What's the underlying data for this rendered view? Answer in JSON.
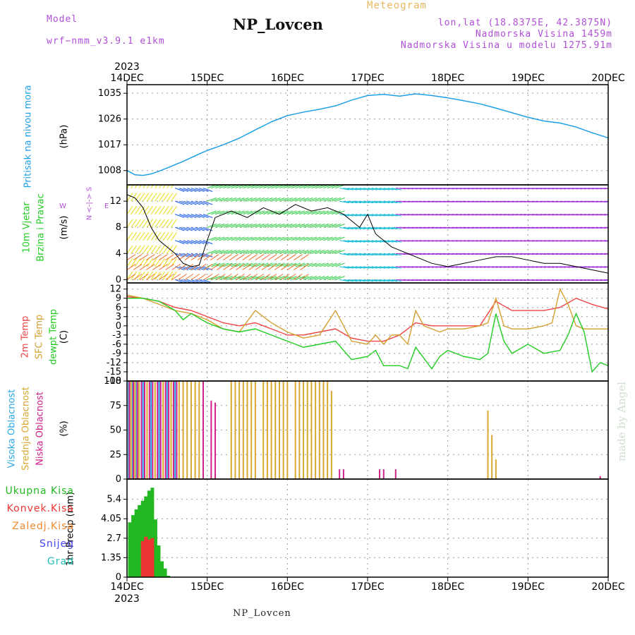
{
  "header": {
    "model_label": "Model",
    "model_value": "wrf−nmm_v3.9.1  e1km",
    "station": "NP_Lovcen",
    "chart_kind": "Meteogram",
    "coords": "lon,lat (18.8375E, 42.3875N)",
    "elevation": "Nadmorska Visina 1459m",
    "model_elevation": "Nadmorska Visina u modelu 1275.91m",
    "watermark": "made by Angel",
    "footer": "NP_Lovcen"
  },
  "time_axis": {
    "year": "2023",
    "ticks": [
      "14DEC",
      "15DEC",
      "16DEC",
      "17DEC",
      "18DEC",
      "19DEC",
      "20DEC"
    ]
  },
  "panel_labels": {
    "pressure": {
      "title": "Pritisak na nivou mora",
      "unit": "(hPa)"
    },
    "wind": {
      "title1": "10m Vjetar",
      "title2": "Brzina i Pravac",
      "unit": "(m/s)",
      "compass_ns": "N <-|-> S",
      "compass_w": "W",
      "compass_e": "E"
    },
    "temp": {
      "t2m": "2m Temp",
      "sfc": "SFC Temp",
      "dew": "dewpt Temp",
      "unit": "(C)"
    },
    "cloud": {
      "high": "Visoka Oblacnost",
      "mid": "Srednja Oblacnost",
      "low": "Niska Oblacnost",
      "unit": "(%)"
    },
    "precip": {
      "unit": "1hr Precip (mm)"
    }
  },
  "precip_legend": [
    "Ukupna Kisa",
    "Konvek.Kisa",
    "Zaledj.Kisa",
    "Snijeg",
    "Grad"
  ],
  "colors": {
    "pressure": "#1ea0e6",
    "t2m": "#ee4444",
    "sfc": "#d4a030",
    "dew": "#22cc22",
    "high": "#2aa8e8",
    "mid": "#d8a830",
    "low": "#d0208a",
    "total": "#22b822",
    "conv": "#ee3333",
    "frozen": "#f08a30",
    "snow": "#4444ee",
    "hail": "#22c0b0",
    "purple": "#b04fd8"
  },
  "chart_data": [
    {
      "type": "line",
      "title": "Pritisak na nivou mora",
      "ylabel": "(hPa)",
      "ylim": [
        1003,
        1038
      ],
      "yticks": [
        1008,
        1017,
        1026,
        1035
      ],
      "x_unit": "days since 14DEC 00Z",
      "xlim": [
        0,
        6
      ],
      "series": [
        {
          "name": "Pritisak na nivou mora",
          "x": [
            0,
            0.1,
            0.2,
            0.3,
            0.4,
            0.5,
            0.7,
            0.9,
            1.0,
            1.2,
            1.4,
            1.6,
            1.8,
            2.0,
            2.2,
            2.4,
            2.6,
            2.8,
            3.0,
            3.2,
            3.4,
            3.6,
            3.8,
            4.0,
            4.2,
            4.4,
            4.6,
            4.8,
            5.0,
            5.2,
            5.4,
            5.6,
            5.8,
            6.0
          ],
          "y": [
            1008,
            1006.5,
            1006.3,
            1006.8,
            1007.8,
            1008.9,
            1011.2,
            1013.8,
            1015.0,
            1017.0,
            1019.3,
            1022.2,
            1025.0,
            1027.2,
            1028.4,
            1029.4,
            1030.6,
            1032.6,
            1034.2,
            1034.6,
            1034.0,
            1034.8,
            1034.2,
            1033.4,
            1032.4,
            1031.3,
            1029.8,
            1028.2,
            1026.6,
            1025.3,
            1024.6,
            1023.2,
            1021.2,
            1019.4
          ]
        }
      ]
    },
    {
      "type": "line",
      "title": "10m Vjetar Brzina i Pravac",
      "ylabel": "(m/s)",
      "ylim": [
        -0.5,
        14.5
      ],
      "yticks": [
        0,
        4,
        8,
        12
      ],
      "series": [
        {
          "name": "Brzina",
          "x": [
            0,
            0.1,
            0.2,
            0.3,
            0.4,
            0.5,
            0.6,
            0.7,
            0.8,
            0.9,
            1.0,
            1.1,
            1.3,
            1.5,
            1.7,
            1.9,
            2.1,
            2.3,
            2.5,
            2.7,
            2.8,
            2.9,
            3.0,
            3.1,
            3.2,
            3.3,
            3.4,
            3.6,
            3.8,
            4.0,
            4.2,
            4.4,
            4.6,
            4.8,
            5.0,
            5.2,
            5.4,
            5.6,
            5.8,
            6.0
          ],
          "y": [
            13,
            12.5,
            11,
            8,
            6,
            5,
            4,
            2.5,
            2,
            2.2,
            6,
            9.5,
            10.5,
            9.5,
            11,
            10,
            11.5,
            10.5,
            11,
            10,
            9,
            8,
            10,
            7,
            6,
            5,
            4.5,
            3.5,
            2.5,
            2,
            2.5,
            3,
            3.5,
            3.5,
            3,
            2.5,
            2.5,
            2,
            1.5,
            1
          ]
        }
      ]
    },
    {
      "type": "line",
      "ylabel": "(C)",
      "ylim": [
        -18,
        14
      ],
      "yticks": [
        12,
        9,
        6,
        3,
        0,
        -3,
        -6,
        -9,
        -12,
        -15,
        -18
      ],
      "series": [
        {
          "name": "2m Temp",
          "x": [
            0,
            0.2,
            0.4,
            0.6,
            0.8,
            1.0,
            1.2,
            1.4,
            1.6,
            1.8,
            2.0,
            2.2,
            2.4,
            2.6,
            2.8,
            3.0,
            3.2,
            3.4,
            3.6,
            3.8,
            4.0,
            4.2,
            4.4,
            4.6,
            4.8,
            5.0,
            5.2,
            5.4,
            5.6,
            5.8,
            6.0
          ],
          "y": [
            9.5,
            9,
            8,
            6,
            5,
            3,
            1,
            0,
            1,
            -1,
            -3,
            -3,
            -2,
            -1,
            -4,
            -5,
            -5,
            -3,
            1,
            0,
            0,
            0,
            0,
            8,
            5,
            5,
            5,
            6,
            9,
            7,
            5.5
          ]
        },
        {
          "name": "SFC Temp",
          "x": [
            0,
            0.2,
            0.4,
            0.6,
            0.8,
            1.0,
            1.2,
            1.4,
            1.6,
            1.8,
            2.0,
            2.2,
            2.4,
            2.6,
            2.8,
            3.0,
            3.1,
            3.2,
            3.3,
            3.4,
            3.5,
            3.6,
            3.7,
            3.8,
            3.9,
            4.0,
            4.2,
            4.4,
            4.5,
            4.6,
            4.7,
            4.8,
            4.9,
            5.0,
            5.2,
            5.3,
            5.4,
            5.5,
            5.6,
            5.7,
            5.8,
            6.0
          ],
          "y": [
            10,
            9,
            7,
            5,
            4,
            2,
            -1,
            -2,
            5,
            1,
            -2,
            -4,
            -3,
            5,
            -5,
            -6,
            -3,
            -6,
            -3,
            -3,
            -6,
            5,
            0,
            -1,
            -2,
            -1,
            -1,
            0,
            1,
            9,
            0,
            -1,
            -1,
            -1,
            0,
            1,
            12,
            7,
            0,
            -1,
            -1,
            -1
          ]
        },
        {
          "name": "dewpt Temp",
          "x": [
            0,
            0.2,
            0.4,
            0.6,
            0.7,
            0.8,
            1.0,
            1.2,
            1.4,
            1.6,
            1.8,
            2.0,
            2.2,
            2.4,
            2.6,
            2.8,
            3.0,
            3.1,
            3.2,
            3.4,
            3.5,
            3.6,
            3.8,
            3.9,
            4.0,
            4.2,
            4.4,
            4.5,
            4.6,
            4.7,
            4.8,
            5.0,
            5.2,
            5.4,
            5.5,
            5.6,
            5.7,
            5.8,
            5.9,
            6.0
          ],
          "y": [
            9,
            9,
            8,
            5,
            2,
            4,
            1,
            -1,
            -2,
            -1,
            -3,
            -5,
            -7,
            -6,
            -5,
            -11,
            -10,
            -8,
            -13,
            -13,
            -14,
            -7,
            -14,
            -10,
            -8,
            -10,
            -11,
            -9,
            4,
            -5,
            -9,
            -6,
            -9,
            -8,
            -3,
            4,
            -2,
            -15,
            -12,
            -13
          ]
        }
      ]
    },
    {
      "type": "bar",
      "ylabel": "(%)",
      "ylim": [
        0,
        100
      ],
      "yticks": [
        0,
        25,
        50,
        75,
        100
      ],
      "series": [
        {
          "name": "Visoka Oblacnost",
          "x": [
            0.02,
            0.07,
            0.12,
            0.2,
            0.3,
            0.4,
            0.5,
            0.6
          ],
          "y": [
            100,
            100,
            100,
            100,
            100,
            100,
            100,
            100
          ]
        },
        {
          "name": "Srednja Oblacnost",
          "x": [
            0.05,
            0.1,
            0.15,
            0.25,
            0.35,
            0.45,
            0.55,
            0.65,
            0.7,
            0.75,
            0.8,
            0.85,
            0.9,
            1.3,
            1.35,
            1.4,
            1.45,
            1.5,
            1.55,
            1.6,
            1.7,
            1.75,
            1.8,
            1.85,
            1.9,
            1.95,
            2.0,
            2.1,
            2.15,
            2.2,
            2.25,
            2.3,
            2.35,
            2.4,
            2.45,
            2.5,
            2.55,
            4.5,
            4.55,
            4.6
          ],
          "y": [
            100,
            100,
            100,
            100,
            100,
            100,
            100,
            100,
            100,
            100,
            100,
            100,
            100,
            100,
            100,
            100,
            100,
            100,
            100,
            100,
            100,
            100,
            100,
            100,
            100,
            100,
            100,
            100,
            100,
            100,
            100,
            100,
            100,
            100,
            100,
            100,
            90,
            70,
            45,
            20
          ]
        },
        {
          "name": "Niska Oblacnost",
          "x": [
            0.03,
            0.08,
            0.13,
            0.18,
            0.22,
            0.28,
            0.32,
            0.38,
            0.42,
            0.48,
            0.52,
            0.58,
            0.62,
            0.95,
            1.05,
            1.1,
            2.65,
            2.7,
            3.15,
            3.2,
            3.35,
            5.9
          ],
          "y": [
            100,
            100,
            100,
            100,
            100,
            100,
            100,
            100,
            100,
            100,
            100,
            100,
            100,
            100,
            80,
            78,
            10,
            10,
            10,
            10,
            10,
            3
          ]
        }
      ]
    },
    {
      "type": "bar",
      "ylabel": "1hr Precip (mm)",
      "ylim": [
        0,
        6.8
      ],
      "yticks": [
        0,
        1.35,
        2.7,
        4.05,
        5.4
      ],
      "series": [
        {
          "name": "Ukupna Kisa",
          "x": [
            0.04,
            0.08,
            0.12,
            0.16,
            0.2,
            0.24,
            0.28,
            0.32,
            0.36,
            0.4,
            0.44,
            0.48,
            0.52
          ],
          "y": [
            3.8,
            4.3,
            4.7,
            5.0,
            5.3,
            5.6,
            6.0,
            6.2,
            4.0,
            2.2,
            1.1,
            0.6,
            0.1
          ]
        },
        {
          "name": "Konvek.Kisa",
          "x": [
            0.2,
            0.24,
            0.28,
            0.32
          ],
          "y": [
            2.5,
            2.8,
            2.6,
            2.7
          ]
        }
      ]
    }
  ]
}
